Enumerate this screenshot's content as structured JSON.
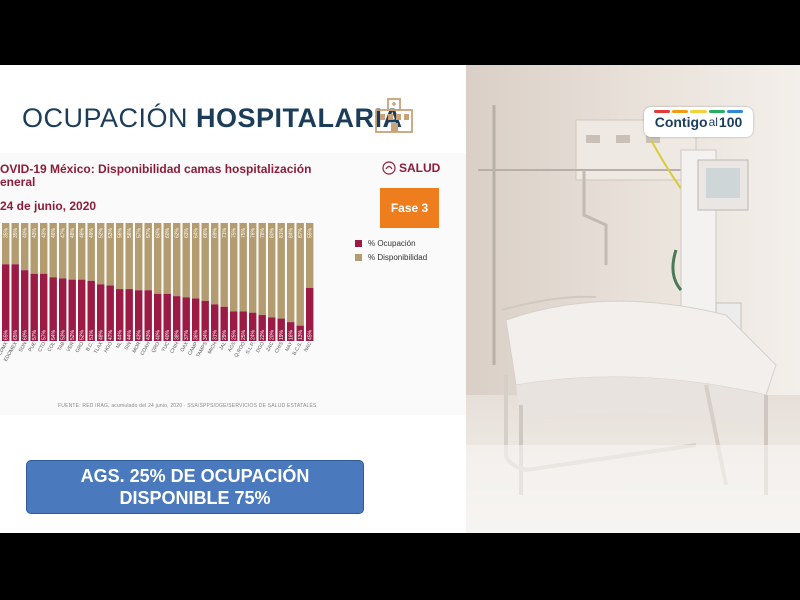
{
  "slide": {
    "title_light": "OCUPACIÓN ",
    "title_bold": "HOSPITALARIA",
    "subtitle": "OVID-19 México: Disponibilidad camas hospitalización eneral",
    "date": "24 de junio, 2020",
    "salud": "SALUD",
    "fase": "Fase 3",
    "legend": [
      {
        "label": "% Ocupación",
        "color": "#9b1b45"
      },
      {
        "label": "% Disponibilidad",
        "color": "#b39c70"
      }
    ],
    "source": "FUENTE: RED IRAG, acumulado del 24 junio, 2020  ·  SSA/SPPS/DGE/SERVICIOS DE SALUD ESTATALES"
  },
  "chart_data": {
    "type": "bar",
    "stacked": true,
    "categories": [
      "CDMX",
      "EDOMEX",
      "SON",
      "PUE",
      "CTO",
      "COL",
      "TAB",
      "VER",
      "GRO",
      "B.C.",
      "TLAX",
      "HGO",
      "NL",
      "SIN",
      "MOR",
      "COAH",
      "QRO",
      "YUC",
      "CHIH",
      "OAX",
      "CAMP",
      "TAMPS",
      "MICH",
      "JAL",
      "AGS",
      "Q.ROO",
      "S.L.P.",
      "DGO",
      "ZAC",
      "CHIS",
      "NAY",
      "B.C.S.",
      "NAC"
    ],
    "series": [
      {
        "name": "% Ocupación",
        "values": [
          65,
          65,
          60,
          57,
          57,
          54,
          53,
          52,
          52,
          51,
          48,
          47,
          44,
          44,
          43,
          43,
          40,
          40,
          38,
          37,
          36,
          34,
          31,
          29,
          25,
          25,
          24,
          22,
          20,
          19,
          16,
          13,
          45
        ]
      },
      {
        "name": "% Disponibilidad",
        "values": [
          35,
          35,
          40,
          43,
          43,
          46,
          47,
          48,
          48,
          49,
          52,
          53,
          56,
          56,
          57,
          57,
          60,
          60,
          62,
          63,
          64,
          66,
          69,
          71,
          75,
          75,
          76,
          78,
          80,
          81,
          84,
          87,
          55
        ]
      }
    ],
    "ylim": [
      0,
      100
    ]
  },
  "banner": {
    "line1": "AGS. 25% DE OCUPACIÓN",
    "line2": "DISPONIBLE 75%"
  },
  "logo": {
    "text_a": "Contigo",
    "text_b": "al",
    "text_c": "100"
  },
  "colors": {
    "ocupacion": "#9b1b45",
    "disponibilidad": "#b39c70",
    "banner": "#4a79bd",
    "fase": "#ee7d1e"
  }
}
